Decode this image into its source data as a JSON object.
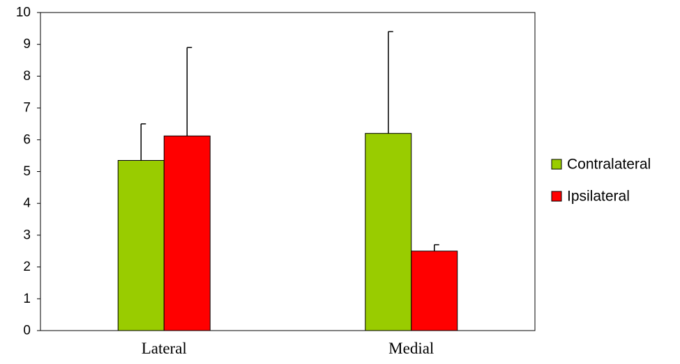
{
  "chart_data": {
    "type": "bar",
    "title": "",
    "xlabel": "",
    "ylabel": "",
    "categories": [
      "Lateral",
      "Medial"
    ],
    "series": [
      {
        "name": "Contralateral",
        "color": "#99cc00",
        "values": [
          5.35,
          6.2
        ],
        "error_upper": [
          1.15,
          3.2
        ]
      },
      {
        "name": "Ipsilateral",
        "color": "#ff0000",
        "values": [
          6.12,
          2.5
        ],
        "error_upper": [
          2.78,
          0.2
        ]
      }
    ],
    "ylim": [
      0,
      10
    ],
    "yticks": [
      0,
      1,
      2,
      3,
      4,
      5,
      6,
      7,
      8,
      9,
      10
    ],
    "error_bars": "upper only",
    "grid": false,
    "legend_position": "right"
  }
}
